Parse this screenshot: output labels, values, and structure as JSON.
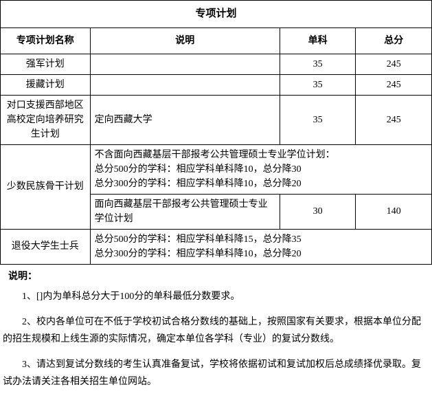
{
  "title": "专项计划",
  "headers": {
    "planName": "专项计划名称",
    "description": "说明",
    "single": "单科",
    "total": "总分"
  },
  "rows": {
    "r1": {
      "name": "强军计划",
      "desc": "",
      "single": "35",
      "total": "245"
    },
    "r2": {
      "name": "援藏计划",
      "desc": "",
      "single": "35",
      "total": "245"
    },
    "r3": {
      "name": "对口支援西部地区高校定向培养研究生计划",
      "desc": "定向西藏大学",
      "single": "35",
      "total": "245"
    },
    "r4": {
      "name": "少数民族骨干计划",
      "descA": "不含面向西藏基层干部报考公共管理硕士专业学位计划：\n总分500分的学科：相应学科单科降10，总分降30\n总分300分的学科：相应学科单科降10，总分降20",
      "descB": "面向西藏基层干部报考公共管理硕士专业学位计划",
      "singleB": "30",
      "totalB": "140"
    },
    "r5": {
      "name": "退役大学生士兵",
      "desc": "总分500分的学科：相应学科单科降15，总分降35\n总分300分的学科：相应学科单科降10，总分降20"
    }
  },
  "notesLabel": "说明：",
  "notes": {
    "n1": "1、[]内为单科总分大于100分的单科最低分数要求。",
    "n2": "2、校内各单位可在不低于学校初试合格分数线的基础上，按照国家有关要求，根据本单位分配的招生规模和上线生源的实际情况，确定本单位各学科（专业）的复试分数线。",
    "n3": "3、请达到复试分数线的考生认真准备复试，学校将依据初试和复试加权后总成绩择优录取。复试办法请关注各相关招生单位网站。"
  }
}
